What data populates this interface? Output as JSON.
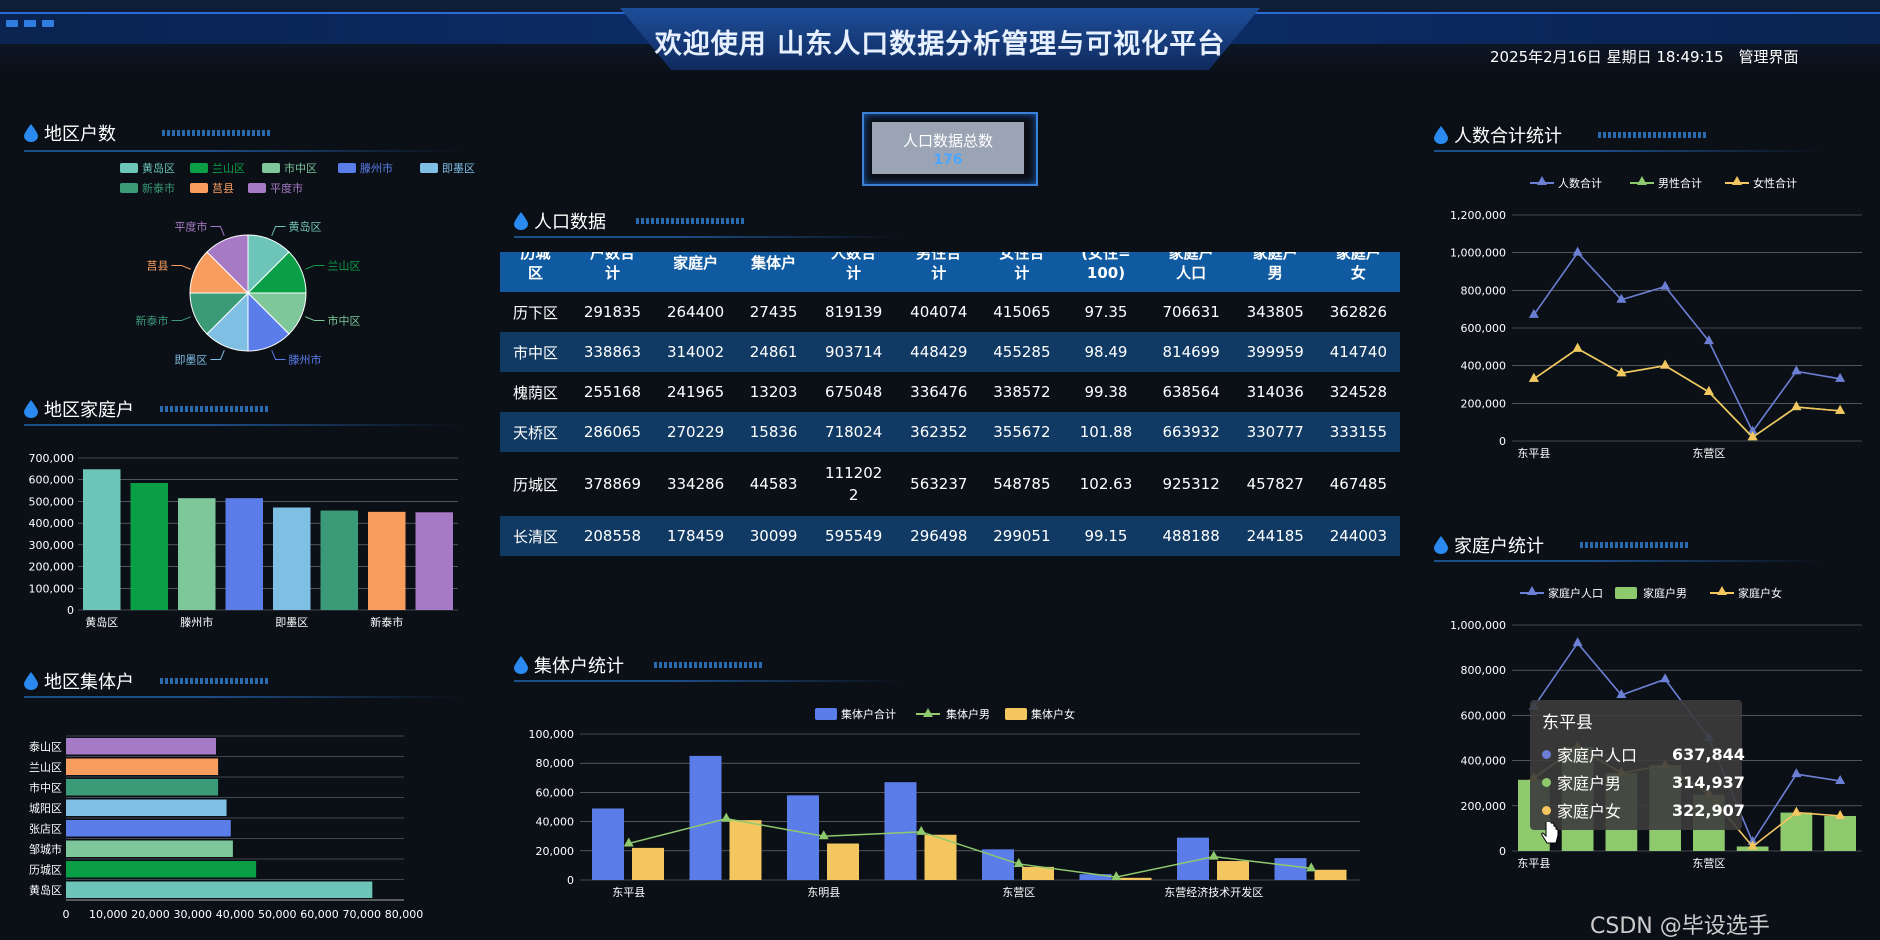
{
  "header": {
    "title": "欢迎使用 山东人口数据分析管理与可视化平台",
    "datetime": "2025年2月16日 星期日 18:49:15",
    "admin_link": "管理界面"
  },
  "colors": {
    "accent": "#2f7de0",
    "teal": "#6cc5b8",
    "green": "#0a9f47",
    "mint": "#7dc79a",
    "blue": "#5b7dea",
    "sky": "#7fbfe4",
    "seagreen": "#3b9a77",
    "orange": "#f99d5f",
    "purple": "#a77ac6",
    "yellow": "#f4c65f",
    "lightgreen": "#8fc96e"
  },
  "sections": {
    "district_households": "地区户数",
    "district_family": "地区家庭户",
    "district_collective": "地区集体户",
    "population_data": "人口数据",
    "collective_stats": "集体户统计",
    "population_total": "人数合计统计",
    "family_stats": "家庭户统计"
  },
  "total_card": {
    "label": "人口数据总数",
    "value": "176"
  },
  "pie": {
    "legend": [
      "黄岛区",
      "兰山区",
      "市中区",
      "滕州市",
      "即墨区",
      "新泰市",
      "莒县",
      "平度市"
    ],
    "labels": [
      "黄岛区",
      "兰山区",
      "市中区",
      "滕州市",
      "即墨区",
      "新泰市",
      "莒县",
      "平度市"
    ]
  },
  "table": {
    "headers": [
      "历城\n区",
      "户数合\n计",
      "家庭户",
      "集体户",
      "人数合\n计",
      "男性合\n计",
      "女性合\n计",
      "(女性=\n100)",
      "家庭户\n人口",
      "家庭户\n男",
      "家庭户\n女"
    ],
    "rows": [
      [
        "历下区",
        "291835",
        "264400",
        "27435",
        "819139",
        "404074",
        "415065",
        "97.35",
        "706631",
        "343805",
        "362826"
      ],
      [
        "市中区",
        "338863",
        "314002",
        "24861",
        "903714",
        "448429",
        "455285",
        "98.49",
        "814699",
        "399959",
        "414740"
      ],
      [
        "槐荫区",
        "255168",
        "241965",
        "13203",
        "675048",
        "336476",
        "338572",
        "99.38",
        "638564",
        "314036",
        "324528"
      ],
      [
        "天桥区",
        "286065",
        "270229",
        "15836",
        "718024",
        "362352",
        "355672",
        "101.88",
        "663932",
        "330777",
        "333155"
      ],
      [
        "历城区",
        "378869",
        "334286",
        "44583",
        "1112022",
        "563237",
        "548785",
        "102.63",
        "925312",
        "457827",
        "467485"
      ],
      [
        "长清区",
        "208558",
        "178459",
        "30099",
        "595549",
        "296498",
        "299051",
        "99.15",
        "488188",
        "244185",
        "244003"
      ]
    ]
  },
  "chart_data": [
    {
      "type": "pie",
      "title": "地区户数",
      "categories": [
        "黄岛区",
        "兰山区",
        "市中区",
        "滕州市",
        "即墨区",
        "新泰市",
        "莒县",
        "平度市"
      ],
      "values": [
        1,
        1,
        1,
        1,
        1,
        1,
        1,
        1
      ],
      "legend": "top"
    },
    {
      "type": "bar",
      "title": "地区家庭户",
      "categories": [
        "黄岛区",
        "兰山区",
        "市中区",
        "滕州市",
        "即墨区",
        "平度市",
        "新泰市",
        "莒县"
      ],
      "tick_labels": [
        "黄岛区",
        "滕州市",
        "即墨区",
        "新泰市"
      ],
      "values": [
        648000,
        585000,
        515000,
        515000,
        472000,
        458000,
        452000,
        450000
      ],
      "ylim": [
        0,
        700000
      ],
      "yticks": [
        "700,000",
        "600,000",
        "500,000",
        "400,000",
        "300,000",
        "200,000",
        "100,000",
        "0"
      ]
    },
    {
      "type": "bar",
      "orientation": "horizontal",
      "title": "地区集体户",
      "categories": [
        "泰山区",
        "兰山区",
        "市中区",
        "城阳区",
        "张店区",
        "邹城市",
        "历城区",
        "黄岛区"
      ],
      "values": [
        35500,
        36000,
        36000,
        38000,
        39000,
        39500,
        45000,
        72500
      ],
      "xlim": [
        0,
        80000
      ],
      "xticks": [
        "0",
        "10,000",
        "20,000",
        "30,000",
        "40,000",
        "50,000",
        "60,000",
        "70,000",
        "80,000"
      ]
    },
    {
      "type": "bar",
      "title": "集体户统计",
      "x_tick_labels": [
        "东平县",
        "东明县",
        "东营区",
        "东营经济技术开发区"
      ],
      "series": [
        {
          "name": "集体户合计",
          "type": "bar",
          "values": [
            49000,
            85000,
            58000,
            67000,
            21000,
            4000,
            29000,
            15000
          ]
        },
        {
          "name": "集体户男",
          "type": "line",
          "values": [
            25000,
            42000,
            30000,
            33000,
            11000,
            2000,
            16000,
            8000
          ]
        },
        {
          "name": "集体户女",
          "type": "bar",
          "values": [
            22000,
            41000,
            25000,
            31000,
            9000,
            1500,
            13000,
            7000
          ]
        }
      ],
      "ylim": [
        0,
        100000
      ],
      "yticks": [
        "100,000",
        "80,000",
        "60,000",
        "40,000",
        "20,000",
        "0"
      ]
    },
    {
      "type": "line",
      "title": "人数合计统计",
      "x_tick_labels": [
        "东平县",
        "东营区"
      ],
      "series": [
        {
          "name": "人数合计",
          "values": [
            670000,
            1000000,
            750000,
            820000,
            530000,
            50000,
            370000,
            330000
          ]
        },
        {
          "name": "男性合计",
          "values": [
            330000,
            490000,
            360000,
            400000,
            260000,
            20000,
            180000,
            160000
          ]
        },
        {
          "name": "女性合计",
          "values": [
            330000,
            490000,
            360000,
            400000,
            260000,
            20000,
            180000,
            160000
          ]
        }
      ],
      "ylim": [
        0,
        1200000
      ],
      "yticks": [
        "1,200,000",
        "1,000,000",
        "800,000",
        "600,000",
        "400,000",
        "200,000",
        "0"
      ]
    },
    {
      "type": "bar",
      "title": "家庭户统计",
      "x_tick_labels": [
        "东平县",
        "东营区"
      ],
      "series": [
        {
          "name": "家庭户人口",
          "type": "line",
          "values": [
            637844,
            920000,
            690000,
            760000,
            500000,
            40000,
            340000,
            310000
          ]
        },
        {
          "name": "家庭户男",
          "type": "bar",
          "values": [
            314937,
            460000,
            345000,
            380000,
            250000,
            20000,
            170000,
            155000
          ]
        },
        {
          "name": "家庭户女",
          "type": "line",
          "values": [
            322907,
            460000,
            345000,
            380000,
            250000,
            20000,
            170000,
            155000
          ]
        }
      ],
      "ylim": [
        0,
        1000000
      ],
      "yticks": [
        "1,000,000",
        "800,000",
        "600,000",
        "400,000",
        "200,000",
        "0"
      ]
    }
  ],
  "tooltip": {
    "title": "东平县",
    "rows": [
      {
        "label": "家庭户人口",
        "value": "637,844"
      },
      {
        "label": "家庭户男",
        "value": "314,937"
      },
      {
        "label": "家庭户女",
        "value": "322,907"
      }
    ]
  },
  "watermark": "CSDN @毕设选手"
}
